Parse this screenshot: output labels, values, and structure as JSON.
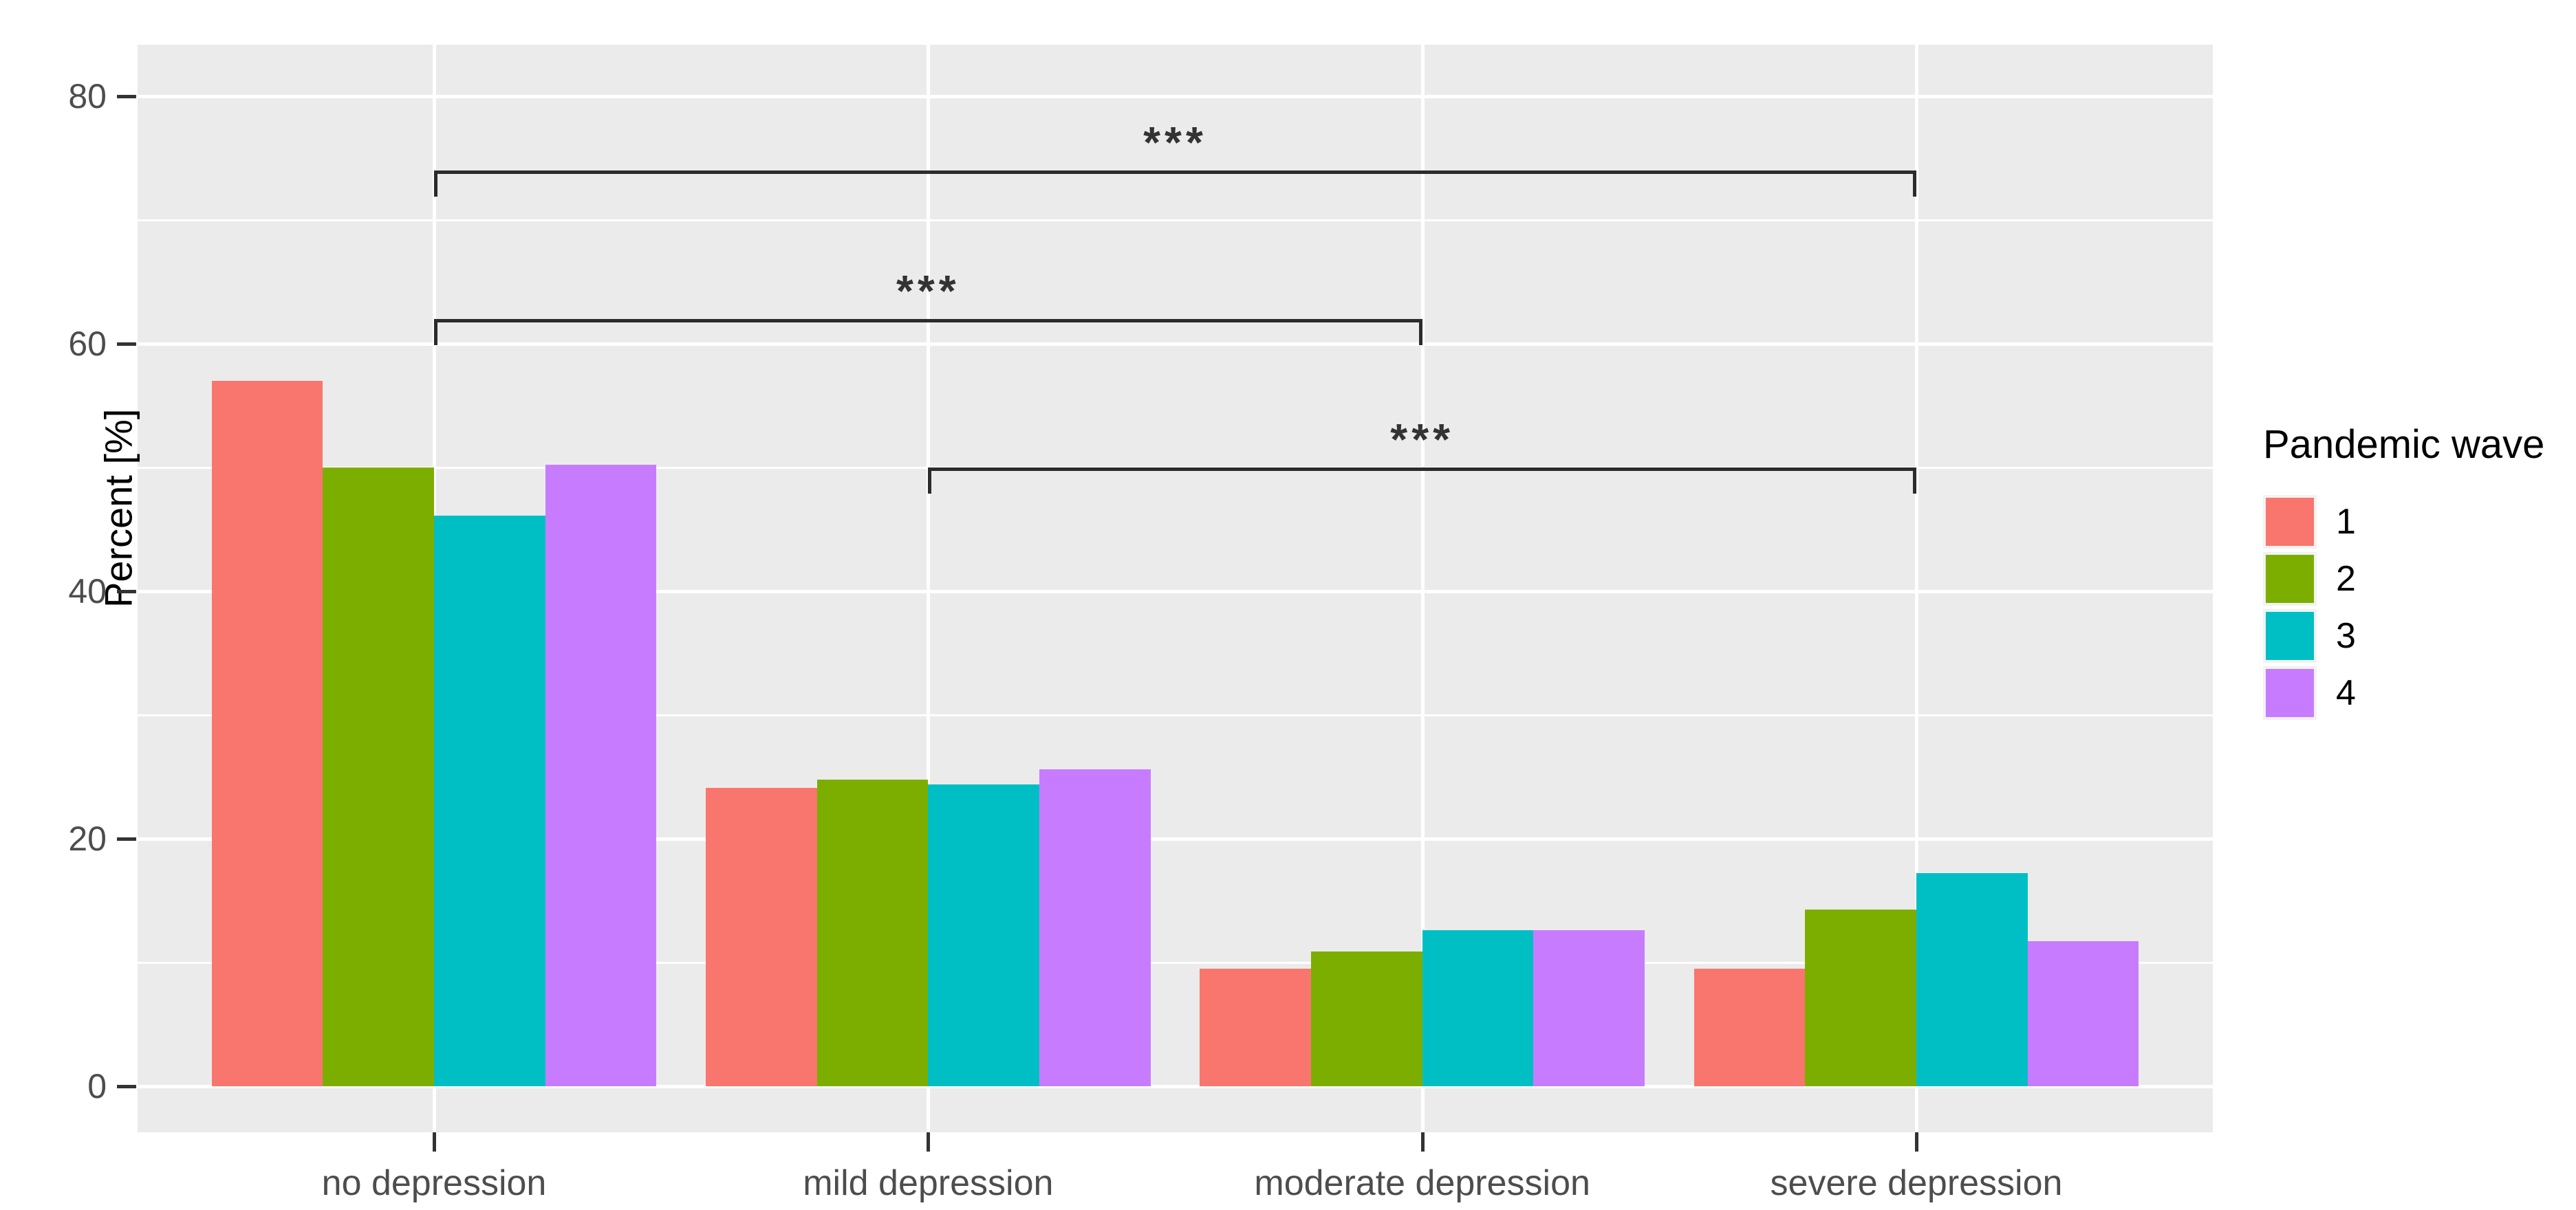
{
  "chart_data": {
    "type": "bar",
    "title": "",
    "xlabel": "",
    "ylabel": "Percent [%]",
    "categories": [
      "no depression",
      "mild depression",
      "moderate depression",
      "severe depression"
    ],
    "series": [
      {
        "name": "1",
        "color": "#F8766D",
        "values": [
          57.0,
          24.1,
          9.5,
          9.5
        ]
      },
      {
        "name": "2",
        "color": "#7CAE00",
        "values": [
          50.0,
          24.8,
          10.9,
          14.3
        ]
      },
      {
        "name": "3",
        "color": "#00BFC4",
        "values": [
          46.1,
          24.4,
          12.6,
          17.2
        ]
      },
      {
        "name": "4",
        "color": "#C77CFF",
        "values": [
          50.2,
          25.6,
          12.6,
          11.7
        ]
      }
    ],
    "ylim": [
      -3.7,
      84.2
    ],
    "y_major_ticks": [
      0,
      20,
      40,
      60,
      80
    ],
    "y_minor_ticks": [
      10,
      30,
      50,
      70
    ],
    "y_tick_labels": [
      "0",
      "20",
      "40",
      "60",
      "80"
    ],
    "grid": "on",
    "legend_title": "Pandemic wave",
    "legend_position": "right",
    "legend_items": [
      "1",
      "2",
      "3",
      "4"
    ],
    "annotations": [
      {
        "label": "***",
        "y": 74,
        "x1": 1,
        "x2": 4,
        "label_x": 2.5
      },
      {
        "label": "***",
        "y": 62,
        "x1": 1,
        "x2": 3,
        "label_x": 2.0
      },
      {
        "label": "***",
        "y": 50,
        "x1": 2,
        "x2": 4,
        "label_x": 3.0
      }
    ],
    "bar_dodge_width": 0.9,
    "bar_width_units": 0.225,
    "style": {
      "panel_background": "#EBEBEB",
      "gridline_color": "#FFFFFF",
      "axis_text_color": "#4D4D4D",
      "axis_title_color": "#000000",
      "tick_mark_color": "#333333",
      "significance_color": "#2B2B2B",
      "outer_background": "#FFFFFF"
    }
  }
}
